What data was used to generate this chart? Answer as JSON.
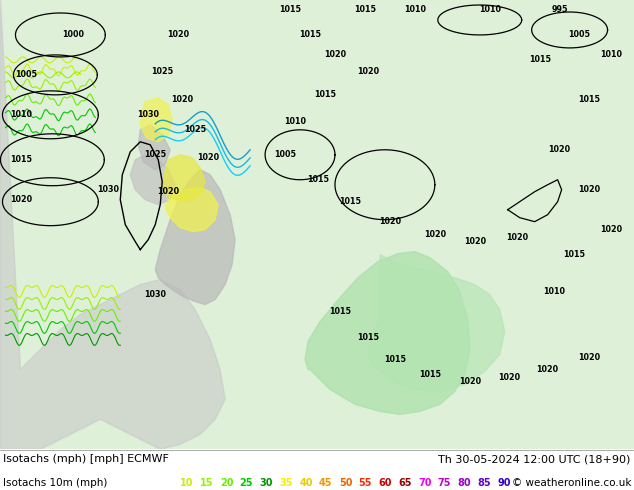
{
  "title_left": "Isotachs (mph) [mph] ECMWF",
  "title_right": "Th 30-05-2024 12:00 UTC (18+90)",
  "legend_label": "Isotachs 10m (mph)",
  "copyright": "© weatheronline.co.uk",
  "legend_values": [
    10,
    15,
    20,
    25,
    30,
    35,
    40,
    45,
    50,
    55,
    60,
    65,
    70,
    75,
    80,
    85,
    90
  ],
  "legend_colors": [
    "#c8f000",
    "#96f000",
    "#64f000",
    "#00c800",
    "#009600",
    "#f0f000",
    "#f0c800",
    "#f09600",
    "#f06400",
    "#f03200",
    "#c80000",
    "#960000",
    "#f000f0",
    "#c800c8",
    "#9600c8",
    "#6400c8",
    "#3200c8"
  ],
  "bg_color": "#ffffff",
  "fig_width": 6.34,
  "fig_height": 4.9,
  "dpi": 100,
  "label_fontsize": 8.0,
  "legend_fontsize": 7.5,
  "title_fontsize": 8.0
}
